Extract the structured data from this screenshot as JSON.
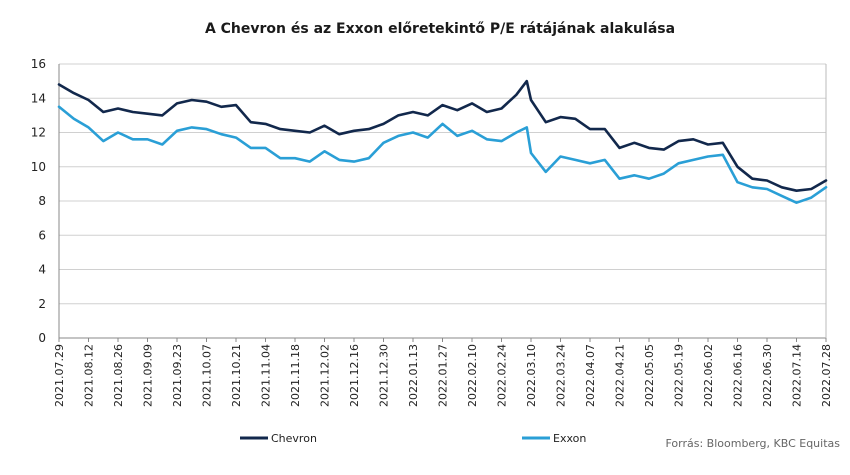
{
  "chart_data": {
    "type": "line",
    "title": "A Chevron és az Exxon előretekintő P/E rátájának alakulása",
    "xlabel": "",
    "ylabel": "",
    "ylim": [
      0,
      16
    ],
    "yticks": [
      0,
      2,
      4,
      6,
      8,
      10,
      12,
      14,
      16
    ],
    "grid": true,
    "legend_position": "bottom",
    "x_tick_labels": [
      "2021.07.29",
      "2021.08.12",
      "2021.08.26",
      "2021.09.09",
      "2021.09.23",
      "2021.10.07",
      "2021.10.21",
      "2021.11.04",
      "2021.11.18",
      "2021.12.02",
      "2021.12.16",
      "2021.12.30",
      "2022.01.13",
      "2022.01.27",
      "2022.02.10",
      "2022.02.24",
      "2022.03.10",
      "2022.03.24",
      "2022.04.07",
      "2022.04.21",
      "2022.05.05",
      "2022.05.19",
      "2022.06.02",
      "2022.06.16",
      "2022.06.30",
      "2022.07.14",
      "2022.07.28"
    ],
    "x": [
      "2021.07.29",
      "2021.08.05",
      "2021.08.12",
      "2021.08.19",
      "2021.08.26",
      "2021.09.02",
      "2021.09.09",
      "2021.09.16",
      "2021.09.23",
      "2021.09.30",
      "2021.10.07",
      "2021.10.14",
      "2021.10.21",
      "2021.10.28",
      "2021.11.04",
      "2021.11.11",
      "2021.11.18",
      "2021.11.25",
      "2021.12.02",
      "2021.12.09",
      "2021.12.16",
      "2021.12.23",
      "2021.12.30",
      "2022.01.06",
      "2022.01.13",
      "2022.01.20",
      "2022.01.27",
      "2022.02.03",
      "2022.02.10",
      "2022.02.17",
      "2022.02.24",
      "2022.03.03",
      "2022.03.08",
      "2022.03.10",
      "2022.03.17",
      "2022.03.24",
      "2022.03.31",
      "2022.04.07",
      "2022.04.14",
      "2022.04.21",
      "2022.04.28",
      "2022.05.05",
      "2022.05.12",
      "2022.05.19",
      "2022.05.26",
      "2022.06.02",
      "2022.06.09",
      "2022.06.16",
      "2022.06.23",
      "2022.06.30",
      "2022.07.07",
      "2022.07.14",
      "2022.07.21",
      "2022.07.28"
    ],
    "series": [
      {
        "name": "Chevron",
        "color": "#12284c",
        "values": [
          14.8,
          14.3,
          13.9,
          13.2,
          13.4,
          13.2,
          13.1,
          13.0,
          13.7,
          13.9,
          13.8,
          13.5,
          13.6,
          12.6,
          12.5,
          12.2,
          12.1,
          12.0,
          12.4,
          11.9,
          12.1,
          12.2,
          12.5,
          13.0,
          13.2,
          13.0,
          13.6,
          13.3,
          13.7,
          13.2,
          13.4,
          14.2,
          15.0,
          13.9,
          12.6,
          12.9,
          12.8,
          12.2,
          12.2,
          11.1,
          11.4,
          11.1,
          11.0,
          11.5,
          11.6,
          11.3,
          11.4,
          10.0,
          9.3,
          9.2,
          8.8,
          8.6,
          8.7,
          9.2
        ]
      },
      {
        "name": "Exxon",
        "color": "#2a9fd6",
        "values": [
          13.5,
          12.8,
          12.3,
          11.5,
          12.0,
          11.6,
          11.6,
          11.3,
          12.1,
          12.3,
          12.2,
          11.9,
          11.7,
          11.1,
          11.1,
          10.5,
          10.5,
          10.3,
          10.9,
          10.4,
          10.3,
          10.5,
          11.4,
          11.8,
          12.0,
          11.7,
          12.5,
          11.8,
          12.1,
          11.6,
          11.5,
          12.0,
          12.3,
          10.8,
          9.7,
          10.6,
          10.4,
          10.2,
          10.4,
          9.3,
          9.5,
          9.3,
          9.6,
          10.2,
          10.4,
          10.6,
          10.7,
          9.1,
          8.8,
          8.7,
          8.3,
          7.9,
          8.2,
          8.8
        ]
      }
    ]
  },
  "legend": {
    "chevron_label": "Chevron",
    "exxon_label": "Exxon"
  },
  "source_note": "Forrás: Bloomberg, KBC Equitas"
}
